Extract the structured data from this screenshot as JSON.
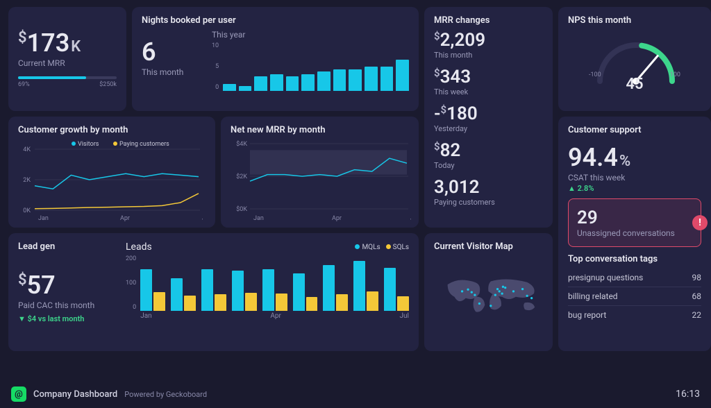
{
  "colors": {
    "card_bg": "#232342",
    "page_bg": "#1a1a2e",
    "accent": "#17c7e8",
    "yellow": "#f4c838",
    "green": "#3dd68c",
    "red": "#e04a6a",
    "grid": "#333350",
    "muted": "#9a9ab8"
  },
  "mrr": {
    "currency": "$",
    "value": "173",
    "suffix": "K",
    "label": "Current MRR",
    "progress_pct": 69,
    "progress_left": "69%",
    "progress_right": "$250k"
  },
  "nights": {
    "title": "Nights booked per user",
    "value": "6",
    "sub": "This month",
    "chart": {
      "title": "This year",
      "y_ticks": [
        "0",
        "5",
        "10"
      ],
      "type": "bar",
      "values": [
        1.5,
        1,
        3,
        3.5,
        3,
        3.5,
        4,
        4.5,
        4.5,
        5,
        5,
        6.5
      ],
      "bar_color": "#17c7e8",
      "ymax": 10
    }
  },
  "growth": {
    "title": "Customer growth by month",
    "legend": [
      {
        "label": "Visitors",
        "color": "#17c7e8"
      },
      {
        "label": "Paying customers",
        "color": "#f4c838"
      }
    ],
    "y_ticks": [
      "4K",
      "2K",
      "0K"
    ],
    "x_ticks": [
      "Jan",
      "Apr",
      "Jul"
    ],
    "ymax": 4,
    "series_visitors": [
      1.6,
      1.4,
      2.3,
      2.0,
      2.2,
      2.4,
      2.2,
      2.4,
      2.3,
      2.2
    ],
    "series_paying": [
      0.1,
      0.12,
      0.15,
      0.18,
      0.2,
      0.23,
      0.25,
      0.3,
      0.5,
      1.1
    ]
  },
  "netmrr": {
    "title": "Net new MRR by month",
    "y_ticks": [
      "$4K",
      "$2K",
      "$0K"
    ],
    "x_ticks": [
      "Jan",
      "Apr",
      "Jul"
    ],
    "ymax": 4,
    "band": [
      2.1,
      3.6
    ],
    "series": [
      1.7,
      2.1,
      2.1,
      2.0,
      2.1,
      2.0,
      2.4,
      2.3,
      3.1,
      2.8
    ]
  },
  "mrrchg": {
    "title": "MRR changes",
    "items": [
      {
        "prefix": "",
        "currency": "$",
        "value": "2,209",
        "label": "This month"
      },
      {
        "prefix": "",
        "currency": "$",
        "value": "343",
        "label": "This week"
      },
      {
        "prefix": "-",
        "currency": "$",
        "value": "180",
        "label": "Yesterday"
      },
      {
        "prefix": "",
        "currency": "$",
        "value": "82",
        "label": "Today"
      },
      {
        "prefix": "",
        "currency": "",
        "value": "3,012",
        "label": "Paying customers"
      }
    ]
  },
  "lead": {
    "title": "Lead gen",
    "currency": "$",
    "value": "57",
    "label": "Paid CAC this month",
    "trend_arrow": "▼",
    "trend_text": "$4 vs last month",
    "chart": {
      "title": "Leads",
      "y_ticks": [
        "200",
        "100",
        "0"
      ],
      "x_ticks": [
        "Jan",
        "Apr",
        "Jul"
      ],
      "ymax": 200,
      "legend": [
        {
          "label": "MQLs",
          "color": "#17c7e8"
        },
        {
          "label": "SQLs",
          "color": "#f4c838"
        }
      ],
      "mqls": [
        150,
        118,
        150,
        145,
        150,
        135,
        165,
        180,
        155
      ],
      "sqls": [
        68,
        55,
        60,
        65,
        62,
        50,
        60,
        70,
        52
      ]
    }
  },
  "nps": {
    "title": "NPS this month",
    "min": "-100",
    "max": "100",
    "value": "45",
    "value_num": 45
  },
  "support": {
    "title": "Customer support",
    "csat_value": "94.4",
    "csat_suffix": "%",
    "csat_label": "CSAT this week",
    "trend_arrow": "▲",
    "trend_text": "2.8%",
    "alert_value": "29",
    "alert_label": "Unassigned conversations",
    "tags_title": "Top conversation tags",
    "tags": [
      {
        "label": "presignup questions",
        "value": "98"
      },
      {
        "label": "billing related",
        "value": "68"
      },
      {
        "label": "bug report",
        "value": "22"
      }
    ]
  },
  "map": {
    "title": "Current Visitor Map",
    "points": [
      [
        75,
        46
      ],
      [
        62,
        50
      ],
      [
        83,
        52
      ],
      [
        90,
        58
      ],
      [
        100,
        77
      ],
      [
        140,
        45
      ],
      [
        152,
        40
      ],
      [
        157,
        42
      ],
      [
        144,
        50
      ],
      [
        150,
        55
      ],
      [
        135,
        58
      ],
      [
        175,
        50
      ],
      [
        195,
        45
      ],
      [
        205,
        60
      ],
      [
        215,
        65
      ],
      [
        125,
        82
      ]
    ]
  },
  "footer": {
    "title": "Company Dashboard",
    "powered": "Powered by Geckoboard",
    "time": "16:13"
  }
}
